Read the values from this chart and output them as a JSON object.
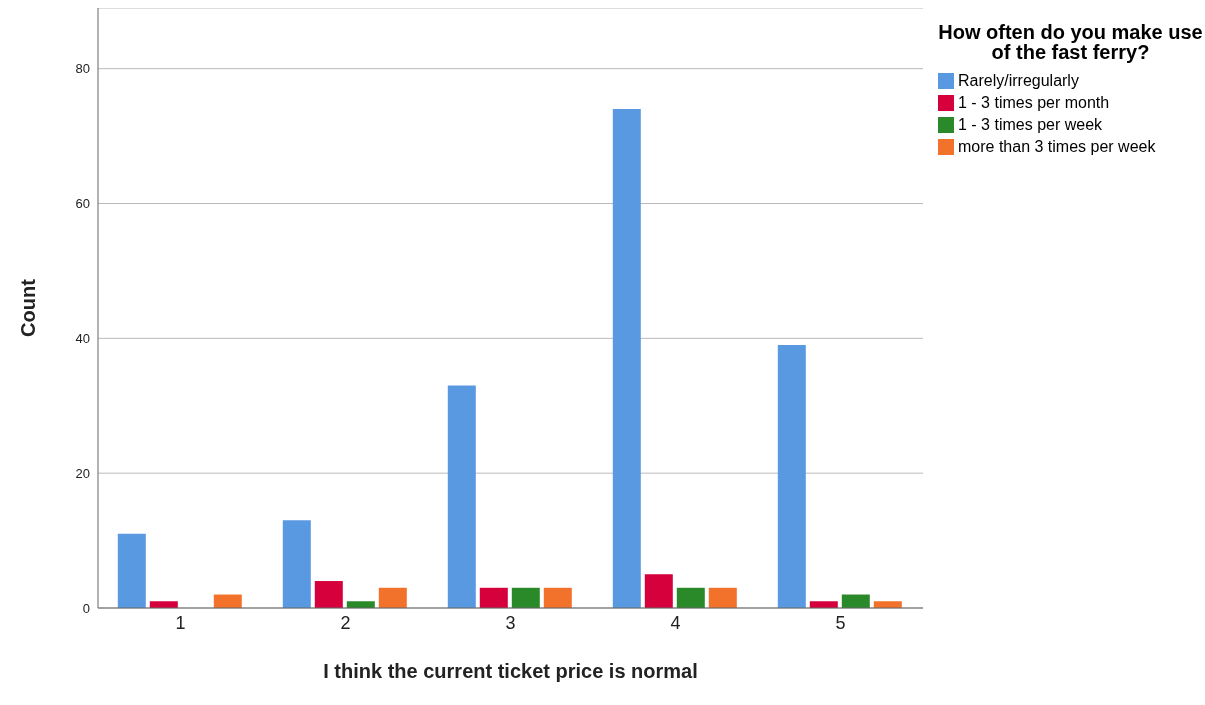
{
  "chart_data": {
    "type": "bar",
    "xlabel": "I think the current ticket price is normal",
    "ylabel": "Count",
    "legend_title": "How often do you make use of the fast ferry?",
    "categories": [
      "1",
      "2",
      "3",
      "4",
      "5"
    ],
    "series": [
      {
        "name": "Rarely/irregularly",
        "color": "#5899e2",
        "values": [
          11,
          13,
          33,
          74,
          39
        ]
      },
      {
        "name": "1 - 3 times per month",
        "color": "#d6003d",
        "values": [
          1,
          4,
          3,
          5,
          1
        ]
      },
      {
        "name": "1 - 3 times per week",
        "color": "#2a8a2a",
        "values": [
          0,
          1,
          3,
          3,
          2
        ]
      },
      {
        "name": "more than 3 times per week",
        "color": "#f2722b",
        "values": [
          2,
          3,
          3,
          3,
          1
        ]
      }
    ],
    "ylim": [
      0,
      89
    ],
    "yticks": [
      0,
      20,
      40,
      60,
      80
    ],
    "grid": "y",
    "legend": "top right"
  }
}
